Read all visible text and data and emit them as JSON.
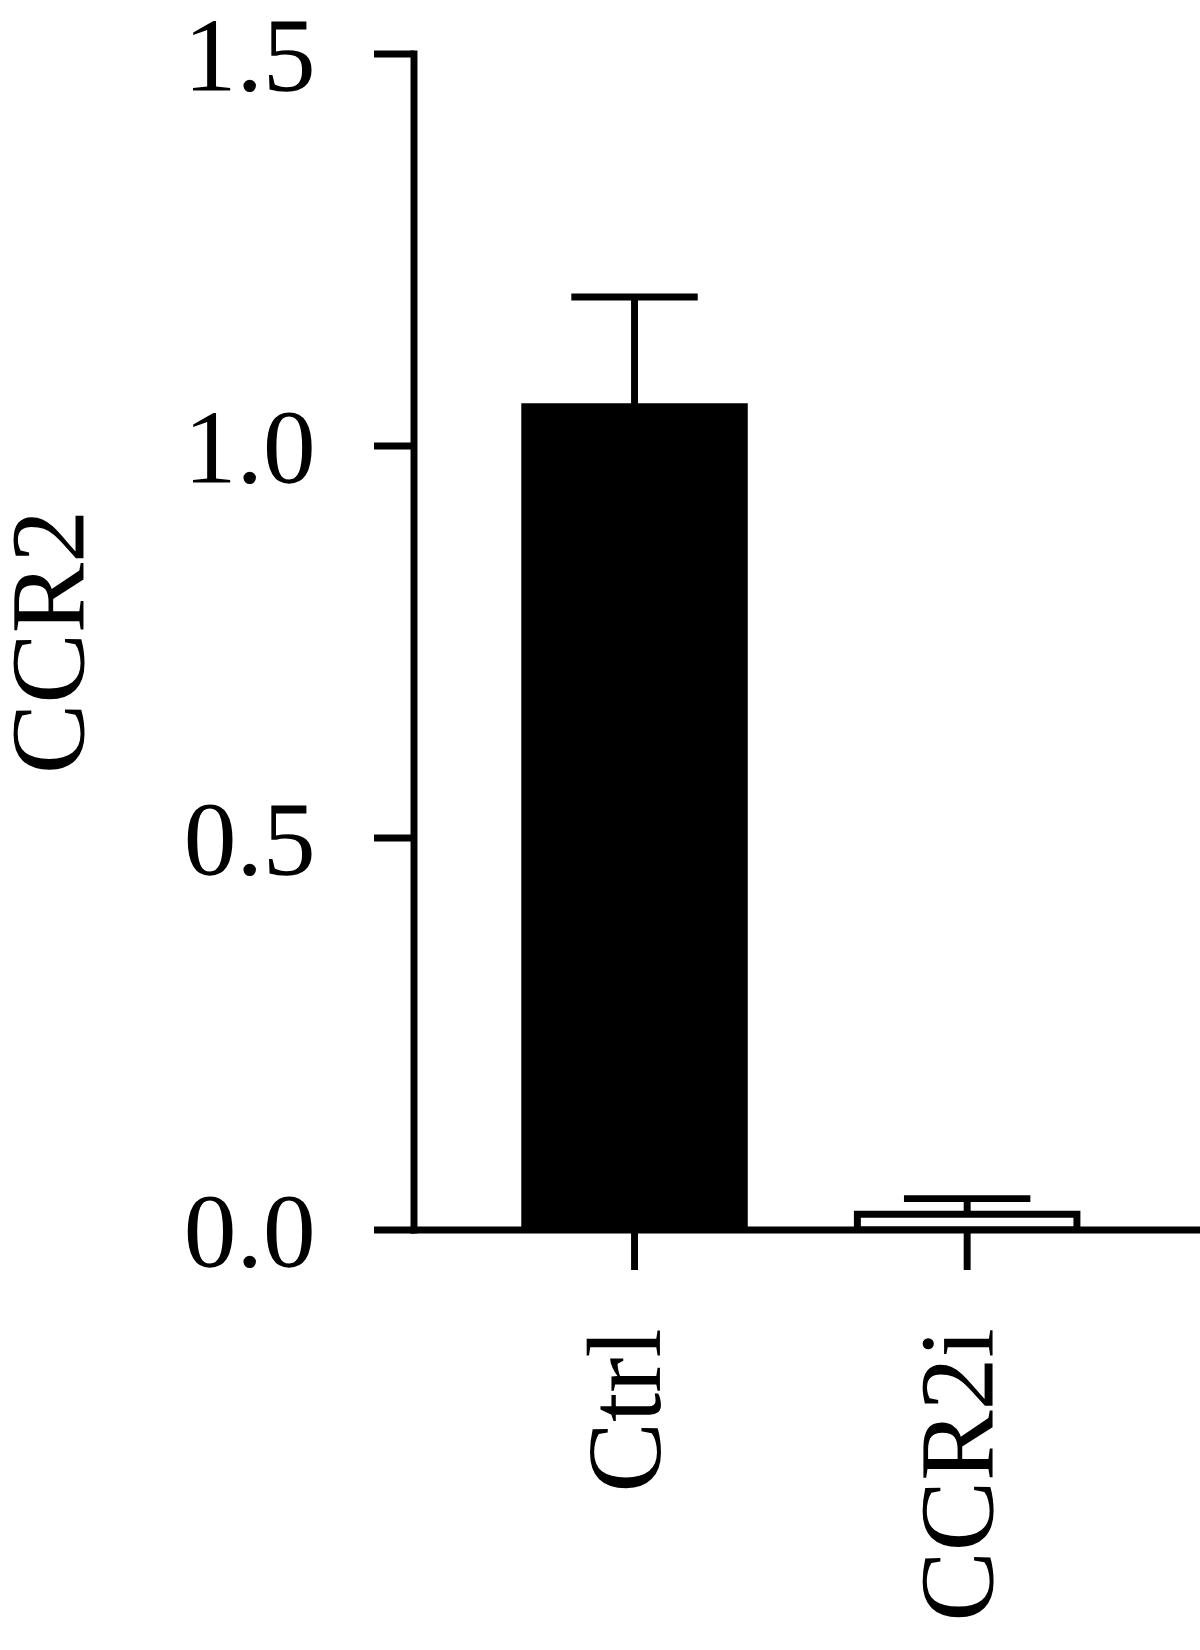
{
  "chart_data": {
    "type": "bar",
    "ylabel": "CCR2",
    "categories": [
      "Ctrl",
      "CCR2i"
    ],
    "values": [
      1.05,
      0.02
    ],
    "colors": [
      "#000000",
      "#ffffff"
    ],
    "errors": [
      [
        1.05,
        1.19
      ],
      [
        0.02,
        0.04
      ]
    ],
    "ylim": [
      0,
      1.5
    ],
    "yticks": [
      {
        "value": 0,
        "label": "0.0"
      },
      {
        "value": 0.5,
        "label": "0.5"
      },
      {
        "value": 1.0,
        "label": "1.0"
      },
      {
        "value": 1.5,
        "label": "1.5"
      }
    ]
  }
}
